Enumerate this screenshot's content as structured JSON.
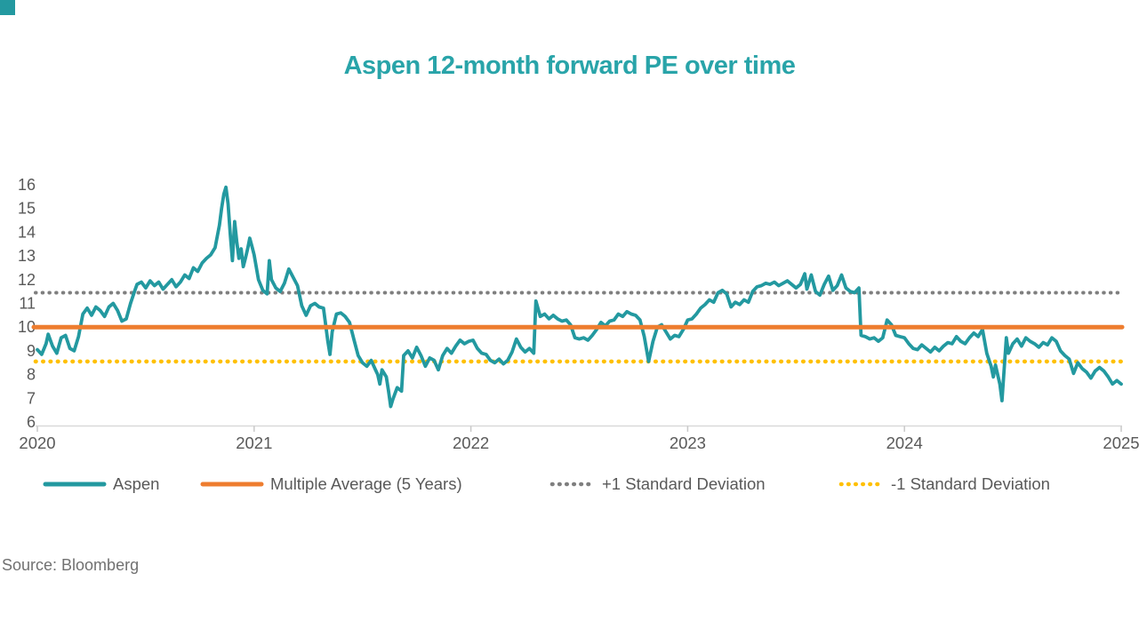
{
  "page": {
    "background": "#ffffff",
    "accent_teal": "#2399a0"
  },
  "title": {
    "text": "Aspen 12-month forward PE over time",
    "color": "#29a4a9"
  },
  "source": {
    "text": "Source: Bloomberg"
  },
  "chart_data": {
    "type": "line",
    "title": "Aspen 12-month forward PE over time",
    "xlabel": "",
    "ylabel": "",
    "grid": false,
    "legend_position": "bottom",
    "x_axis": {
      "range": [
        2020,
        2025
      ],
      "ticks": [
        2020,
        2021,
        2022,
        2023,
        2024,
        2025
      ],
      "axis_color": "#d9d9d9",
      "tick_label_color": "#595959"
    },
    "y_axis": {
      "range": [
        6,
        16
      ],
      "ticks": [
        6,
        7,
        8,
        9,
        10,
        11,
        12,
        13,
        14,
        15,
        16
      ],
      "tick_label_color": "#595959"
    },
    "series": [
      {
        "name": "Aspen",
        "color": "#2399a0",
        "style": "solid",
        "width": 3.8,
        "points": [
          [
            2020.0,
            9.05
          ],
          [
            2020.02,
            8.85
          ],
          [
            2020.04,
            9.3
          ],
          [
            2020.05,
            9.7
          ],
          [
            2020.07,
            9.2
          ],
          [
            2020.09,
            8.9
          ],
          [
            2020.11,
            9.55
          ],
          [
            2020.13,
            9.65
          ],
          [
            2020.15,
            9.1
          ],
          [
            2020.17,
            9.0
          ],
          [
            2020.19,
            9.6
          ],
          [
            2020.21,
            10.55
          ],
          [
            2020.23,
            10.8
          ],
          [
            2020.25,
            10.5
          ],
          [
            2020.27,
            10.85
          ],
          [
            2020.29,
            10.7
          ],
          [
            2020.31,
            10.45
          ],
          [
            2020.33,
            10.85
          ],
          [
            2020.35,
            11.0
          ],
          [
            2020.37,
            10.7
          ],
          [
            2020.39,
            10.25
          ],
          [
            2020.41,
            10.35
          ],
          [
            2020.43,
            11.0
          ],
          [
            2020.45,
            11.55
          ],
          [
            2020.46,
            11.8
          ],
          [
            2020.48,
            11.9
          ],
          [
            2020.5,
            11.65
          ],
          [
            2020.52,
            11.95
          ],
          [
            2020.54,
            11.75
          ],
          [
            2020.56,
            11.9
          ],
          [
            2020.58,
            11.6
          ],
          [
            2020.6,
            11.8
          ],
          [
            2020.62,
            12.0
          ],
          [
            2020.64,
            11.7
          ],
          [
            2020.66,
            11.9
          ],
          [
            2020.68,
            12.2
          ],
          [
            2020.7,
            12.05
          ],
          [
            2020.72,
            12.5
          ],
          [
            2020.74,
            12.35
          ],
          [
            2020.76,
            12.7
          ],
          [
            2020.78,
            12.9
          ],
          [
            2020.8,
            13.05
          ],
          [
            2020.82,
            13.35
          ],
          [
            2020.84,
            14.3
          ],
          [
            2020.85,
            15.0
          ],
          [
            2020.86,
            15.6
          ],
          [
            2020.87,
            15.9
          ],
          [
            2020.88,
            15.2
          ],
          [
            2020.89,
            13.9
          ],
          [
            2020.9,
            12.8
          ],
          [
            2020.91,
            14.45
          ],
          [
            2020.92,
            13.6
          ],
          [
            2020.93,
            12.9
          ],
          [
            2020.94,
            13.3
          ],
          [
            2020.95,
            12.55
          ],
          [
            2020.96,
            12.9
          ],
          [
            2020.97,
            13.3
          ],
          [
            2020.98,
            13.75
          ],
          [
            2020.99,
            13.4
          ],
          [
            2021.0,
            13.05
          ],
          [
            2021.02,
            12.0
          ],
          [
            2021.04,
            11.55
          ],
          [
            2021.06,
            11.4
          ],
          [
            2021.07,
            12.8
          ],
          [
            2021.08,
            12.0
          ],
          [
            2021.1,
            11.65
          ],
          [
            2021.12,
            11.5
          ],
          [
            2021.14,
            11.85
          ],
          [
            2021.16,
            12.45
          ],
          [
            2021.18,
            12.1
          ],
          [
            2021.2,
            11.75
          ],
          [
            2021.22,
            10.9
          ],
          [
            2021.24,
            10.5
          ],
          [
            2021.26,
            10.9
          ],
          [
            2021.28,
            11.0
          ],
          [
            2021.3,
            10.85
          ],
          [
            2021.32,
            10.8
          ],
          [
            2021.34,
            9.4
          ],
          [
            2021.35,
            8.85
          ],
          [
            2021.36,
            9.8
          ],
          [
            2021.38,
            10.55
          ],
          [
            2021.4,
            10.6
          ],
          [
            2021.42,
            10.45
          ],
          [
            2021.44,
            10.2
          ],
          [
            2021.46,
            9.5
          ],
          [
            2021.48,
            8.8
          ],
          [
            2021.5,
            8.5
          ],
          [
            2021.52,
            8.35
          ],
          [
            2021.54,
            8.6
          ],
          [
            2021.56,
            8.2
          ],
          [
            2021.57,
            8.0
          ],
          [
            2021.58,
            7.6
          ],
          [
            2021.59,
            8.2
          ],
          [
            2021.61,
            7.9
          ],
          [
            2021.62,
            7.3
          ],
          [
            2021.63,
            6.65
          ],
          [
            2021.64,
            6.95
          ],
          [
            2021.66,
            7.45
          ],
          [
            2021.68,
            7.3
          ],
          [
            2021.69,
            8.8
          ],
          [
            2021.71,
            9.0
          ],
          [
            2021.73,
            8.7
          ],
          [
            2021.75,
            9.15
          ],
          [
            2021.77,
            8.8
          ],
          [
            2021.79,
            8.35
          ],
          [
            2021.81,
            8.7
          ],
          [
            2021.83,
            8.6
          ],
          [
            2021.85,
            8.2
          ],
          [
            2021.87,
            8.8
          ],
          [
            2021.89,
            9.1
          ],
          [
            2021.91,
            8.9
          ],
          [
            2021.93,
            9.2
          ],
          [
            2021.95,
            9.45
          ],
          [
            2021.97,
            9.3
          ],
          [
            2021.99,
            9.4
          ],
          [
            2022.01,
            9.45
          ],
          [
            2022.03,
            9.1
          ],
          [
            2022.05,
            8.9
          ],
          [
            2022.07,
            8.85
          ],
          [
            2022.09,
            8.6
          ],
          [
            2022.11,
            8.5
          ],
          [
            2022.13,
            8.65
          ],
          [
            2022.15,
            8.45
          ],
          [
            2022.17,
            8.6
          ],
          [
            2022.19,
            8.95
          ],
          [
            2022.21,
            9.5
          ],
          [
            2022.23,
            9.15
          ],
          [
            2022.25,
            8.95
          ],
          [
            2022.27,
            9.1
          ],
          [
            2022.29,
            8.9
          ],
          [
            2022.3,
            11.1
          ],
          [
            2022.32,
            10.45
          ],
          [
            2022.34,
            10.55
          ],
          [
            2022.36,
            10.35
          ],
          [
            2022.38,
            10.5
          ],
          [
            2022.4,
            10.35
          ],
          [
            2022.42,
            10.25
          ],
          [
            2022.44,
            10.3
          ],
          [
            2022.46,
            10.1
          ],
          [
            2022.48,
            9.55
          ],
          [
            2022.5,
            9.5
          ],
          [
            2022.52,
            9.55
          ],
          [
            2022.54,
            9.45
          ],
          [
            2022.56,
            9.65
          ],
          [
            2022.58,
            9.9
          ],
          [
            2022.6,
            10.2
          ],
          [
            2022.62,
            10.05
          ],
          [
            2022.64,
            10.25
          ],
          [
            2022.66,
            10.3
          ],
          [
            2022.68,
            10.55
          ],
          [
            2022.7,
            10.45
          ],
          [
            2022.72,
            10.65
          ],
          [
            2022.74,
            10.55
          ],
          [
            2022.76,
            10.5
          ],
          [
            2022.78,
            10.3
          ],
          [
            2022.8,
            9.6
          ],
          [
            2022.82,
            8.55
          ],
          [
            2022.84,
            9.4
          ],
          [
            2022.86,
            10.0
          ],
          [
            2022.88,
            10.1
          ],
          [
            2022.9,
            9.8
          ],
          [
            2022.92,
            9.5
          ],
          [
            2022.94,
            9.65
          ],
          [
            2022.96,
            9.6
          ],
          [
            2022.98,
            9.9
          ],
          [
            2023.0,
            10.3
          ],
          [
            2023.02,
            10.35
          ],
          [
            2023.04,
            10.55
          ],
          [
            2023.06,
            10.8
          ],
          [
            2023.08,
            10.95
          ],
          [
            2023.1,
            11.15
          ],
          [
            2023.12,
            11.05
          ],
          [
            2023.14,
            11.45
          ],
          [
            2023.16,
            11.55
          ],
          [
            2023.18,
            11.4
          ],
          [
            2023.2,
            10.85
          ],
          [
            2023.22,
            11.05
          ],
          [
            2023.24,
            10.95
          ],
          [
            2023.26,
            11.15
          ],
          [
            2023.28,
            11.05
          ],
          [
            2023.3,
            11.5
          ],
          [
            2023.32,
            11.7
          ],
          [
            2023.34,
            11.75
          ],
          [
            2023.36,
            11.85
          ],
          [
            2023.38,
            11.8
          ],
          [
            2023.4,
            11.9
          ],
          [
            2023.42,
            11.75
          ],
          [
            2023.44,
            11.85
          ],
          [
            2023.46,
            11.95
          ],
          [
            2023.48,
            11.8
          ],
          [
            2023.5,
            11.65
          ],
          [
            2023.52,
            11.8
          ],
          [
            2023.54,
            12.25
          ],
          [
            2023.55,
            11.6
          ],
          [
            2023.57,
            12.2
          ],
          [
            2023.59,
            11.5
          ],
          [
            2023.61,
            11.35
          ],
          [
            2023.63,
            11.8
          ],
          [
            2023.65,
            12.15
          ],
          [
            2023.67,
            11.55
          ],
          [
            2023.69,
            11.75
          ],
          [
            2023.71,
            12.2
          ],
          [
            2023.73,
            11.65
          ],
          [
            2023.75,
            11.5
          ],
          [
            2023.77,
            11.45
          ],
          [
            2023.79,
            11.65
          ],
          [
            2023.8,
            9.65
          ],
          [
            2023.82,
            9.6
          ],
          [
            2023.84,
            9.5
          ],
          [
            2023.86,
            9.55
          ],
          [
            2023.88,
            9.4
          ],
          [
            2023.9,
            9.55
          ],
          [
            2023.92,
            10.3
          ],
          [
            2023.94,
            10.1
          ],
          [
            2023.96,
            9.65
          ],
          [
            2023.98,
            9.6
          ],
          [
            2024.0,
            9.55
          ],
          [
            2024.02,
            9.3
          ],
          [
            2024.04,
            9.1
          ],
          [
            2024.06,
            9.05
          ],
          [
            2024.08,
            9.25
          ],
          [
            2024.1,
            9.1
          ],
          [
            2024.12,
            8.95
          ],
          [
            2024.14,
            9.15
          ],
          [
            2024.16,
            9.0
          ],
          [
            2024.18,
            9.2
          ],
          [
            2024.2,
            9.35
          ],
          [
            2024.22,
            9.3
          ],
          [
            2024.24,
            9.6
          ],
          [
            2024.26,
            9.4
          ],
          [
            2024.28,
            9.3
          ],
          [
            2024.3,
            9.55
          ],
          [
            2024.32,
            9.75
          ],
          [
            2024.34,
            9.6
          ],
          [
            2024.36,
            9.9
          ],
          [
            2024.38,
            8.9
          ],
          [
            2024.4,
            8.35
          ],
          [
            2024.41,
            7.9
          ],
          [
            2024.42,
            8.4
          ],
          [
            2024.44,
            7.6
          ],
          [
            2024.45,
            6.9
          ],
          [
            2024.46,
            8.2
          ],
          [
            2024.47,
            9.55
          ],
          [
            2024.48,
            8.9
          ],
          [
            2024.5,
            9.3
          ],
          [
            2024.52,
            9.5
          ],
          [
            2024.54,
            9.2
          ],
          [
            2024.56,
            9.55
          ],
          [
            2024.58,
            9.4
          ],
          [
            2024.6,
            9.3
          ],
          [
            2024.62,
            9.15
          ],
          [
            2024.64,
            9.35
          ],
          [
            2024.66,
            9.25
          ],
          [
            2024.68,
            9.55
          ],
          [
            2024.7,
            9.4
          ],
          [
            2024.72,
            9.0
          ],
          [
            2024.74,
            8.8
          ],
          [
            2024.76,
            8.65
          ],
          [
            2024.78,
            8.05
          ],
          [
            2024.8,
            8.5
          ],
          [
            2024.82,
            8.25
          ],
          [
            2024.84,
            8.1
          ],
          [
            2024.86,
            7.85
          ],
          [
            2024.88,
            8.15
          ],
          [
            2024.9,
            8.3
          ],
          [
            2024.92,
            8.15
          ],
          [
            2024.94,
            7.9
          ],
          [
            2024.96,
            7.6
          ],
          [
            2024.98,
            7.75
          ],
          [
            2025.0,
            7.6
          ]
        ]
      },
      {
        "name": "Multiple Average (5 Years)",
        "color": "#ee7d2f",
        "style": "solid",
        "width": 5,
        "value": 10.0
      },
      {
        "name": "+1 Standard Deviation",
        "color": "#7f7f7f",
        "style": "dotted",
        "width": 4,
        "value": 11.45
      },
      {
        "name": "-1 Standard Deviation",
        "color": "#ffc000",
        "style": "dotted",
        "width": 4.6,
        "value": 8.55
      }
    ]
  }
}
